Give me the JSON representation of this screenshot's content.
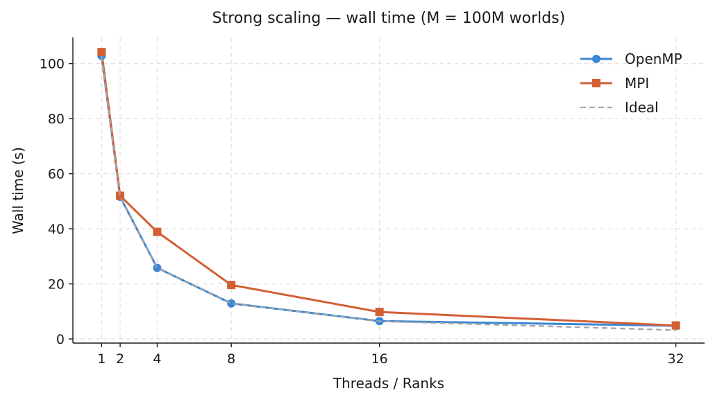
{
  "chart_data": {
    "type": "line",
    "title": "Strong scaling — wall time  (M = 100M worlds)",
    "xlabel": "Threads / Ranks",
    "ylabel": "Wall time (s)",
    "x": [
      1,
      2,
      4,
      8,
      16,
      32
    ],
    "xlim": [
      -0.55,
      33.55
    ],
    "ylim": [
      -1.5,
      109.5
    ],
    "xticks": [
      1,
      2,
      4,
      8,
      16,
      32
    ],
    "yticks": [
      0,
      20,
      40,
      60,
      80,
      100
    ],
    "grid": true,
    "legend_position": "top-right",
    "series": [
      {
        "name": "OpenMP",
        "values": [
          102.8,
          51.6,
          25.8,
          12.9,
          6.5,
          4.8
        ],
        "color": "#3a87d6",
        "marker": "circle",
        "style": "solid"
      },
      {
        "name": "MPI",
        "values": [
          104.2,
          52.0,
          38.9,
          19.6,
          9.8,
          4.9
        ],
        "color": "#d35f34",
        "marker": "square",
        "style": "solid"
      },
      {
        "name": "Ideal",
        "values": [
          102.8,
          51.4,
          25.7,
          12.85,
          6.43,
          3.21
        ],
        "color": "#a6a6a6",
        "marker": "none",
        "style": "dashed"
      }
    ]
  }
}
